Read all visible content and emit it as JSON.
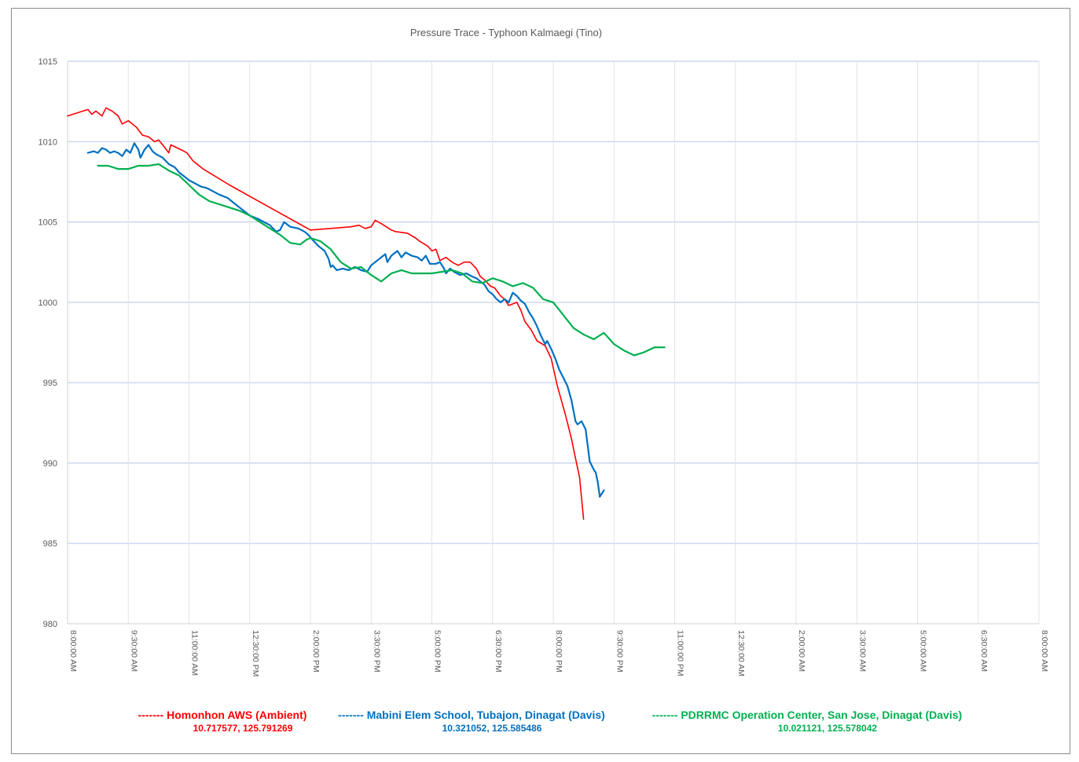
{
  "chart_data": {
    "type": "line",
    "title": "Pressure Trace - Typhoon Kalmaegi (Tino)",
    "xlabel": "",
    "ylabel": "",
    "ylim": [
      980,
      1015
    ],
    "y_ticks": [
      "1015",
      "1010",
      "1005",
      "1000",
      "995",
      "990",
      "985",
      "980"
    ],
    "x_range_hours": [
      8,
      32
    ],
    "x_ticks": [
      "8:00:00 AM",
      "9:30:00 AM",
      "11:00:00 AM",
      "12:30:00 PM",
      "2:00:00 PM",
      "3:30:00 PM",
      "5:00:00 PM",
      "6:30:00 PM",
      "8:00:00 PM",
      "9:30:00 PM",
      "11:00:00 PM",
      "12:30:00 AM",
      "2:00:00 AM",
      "3:30:00 AM",
      "5:00:00 AM",
      "6:30:00 AM",
      "8:00:00 AM"
    ],
    "grid": "horizontal and vertical",
    "legend_position": "bottom",
    "series": [
      {
        "name": "Homonhon AWS (Ambient)",
        "legend_prefix": "-------",
        "coords": "10.717577, 125.791269",
        "color": "#ff0000",
        "points": [
          [
            8.0,
            1011.6
          ],
          [
            8.5,
            1012.0
          ],
          [
            8.6,
            1011.7
          ],
          [
            8.7,
            1011.9
          ],
          [
            8.85,
            1011.6
          ],
          [
            8.95,
            1012.1
          ],
          [
            9.1,
            1011.9
          ],
          [
            9.25,
            1011.6
          ],
          [
            9.35,
            1011.1
          ],
          [
            9.5,
            1011.3
          ],
          [
            9.7,
            1010.9
          ],
          [
            9.85,
            1010.4
          ],
          [
            10.0,
            1010.3
          ],
          [
            10.15,
            1010.0
          ],
          [
            10.25,
            1010.1
          ],
          [
            10.35,
            1009.8
          ],
          [
            10.5,
            1009.3
          ],
          [
            10.55,
            1009.8
          ],
          [
            10.8,
            1009.5
          ],
          [
            10.95,
            1009.3
          ],
          [
            11.1,
            1008.8
          ],
          [
            11.35,
            1008.3
          ],
          [
            12.0,
            1007.3
          ],
          [
            13.0,
            1005.9
          ],
          [
            14.0,
            1004.5
          ],
          [
            14.5,
            1004.6
          ],
          [
            15.0,
            1004.7
          ],
          [
            15.2,
            1004.8
          ],
          [
            15.35,
            1004.6
          ],
          [
            15.5,
            1004.7
          ],
          [
            15.6,
            1005.1
          ],
          [
            15.75,
            1004.9
          ],
          [
            16.0,
            1004.5
          ],
          [
            16.1,
            1004.4
          ],
          [
            16.4,
            1004.3
          ],
          [
            16.6,
            1004.0
          ],
          [
            16.7,
            1003.8
          ],
          [
            16.9,
            1003.5
          ],
          [
            17.0,
            1003.2
          ],
          [
            17.1,
            1003.3
          ],
          [
            17.2,
            1002.6
          ],
          [
            17.35,
            1002.8
          ],
          [
            17.5,
            1002.5
          ],
          [
            17.65,
            1002.3
          ],
          [
            17.8,
            1002.5
          ],
          [
            17.95,
            1002.5
          ],
          [
            18.1,
            1002.1
          ],
          [
            18.2,
            1001.6
          ],
          [
            18.3,
            1001.4
          ],
          [
            18.45,
            1001.0
          ],
          [
            18.55,
            1000.9
          ],
          [
            18.7,
            1000.4
          ],
          [
            18.8,
            1000.2
          ],
          [
            18.9,
            999.8
          ],
          [
            19.0,
            999.9
          ],
          [
            19.1,
            1000.0
          ],
          [
            19.2,
            999.5
          ],
          [
            19.3,
            998.8
          ],
          [
            19.45,
            998.3
          ],
          [
            19.6,
            997.6
          ],
          [
            19.8,
            997.3
          ],
          [
            19.95,
            996.5
          ],
          [
            20.1,
            994.8
          ],
          [
            20.3,
            993.0
          ],
          [
            20.45,
            991.5
          ],
          [
            20.55,
            990.3
          ],
          [
            20.65,
            989.1
          ],
          [
            20.75,
            986.5
          ]
        ]
      },
      {
        "name": "Mabini Elem School, Tubajon, Dinagat (Davis)",
        "legend_prefix": "-------",
        "coords": "10.321052, 125.585486",
        "color": "#0070c0",
        "points": [
          [
            8.5,
            1009.3
          ],
          [
            8.65,
            1009.4
          ],
          [
            8.75,
            1009.3
          ],
          [
            8.85,
            1009.6
          ],
          [
            8.95,
            1009.5
          ],
          [
            9.05,
            1009.3
          ],
          [
            9.15,
            1009.4
          ],
          [
            9.25,
            1009.3
          ],
          [
            9.35,
            1009.1
          ],
          [
            9.45,
            1009.5
          ],
          [
            9.55,
            1009.3
          ],
          [
            9.65,
            1009.9
          ],
          [
            9.75,
            1009.5
          ],
          [
            9.8,
            1009.0
          ],
          [
            9.9,
            1009.5
          ],
          [
            10.0,
            1009.8
          ],
          [
            10.1,
            1009.4
          ],
          [
            10.2,
            1009.2
          ],
          [
            10.35,
            1009.0
          ],
          [
            10.5,
            1008.6
          ],
          [
            10.65,
            1008.4
          ],
          [
            10.75,
            1008.1
          ],
          [
            10.9,
            1007.8
          ],
          [
            11.0,
            1007.6
          ],
          [
            11.15,
            1007.4
          ],
          [
            11.3,
            1007.2
          ],
          [
            11.45,
            1007.1
          ],
          [
            11.6,
            1006.9
          ],
          [
            11.75,
            1006.7
          ],
          [
            11.95,
            1006.5
          ],
          [
            12.1,
            1006.2
          ],
          [
            12.3,
            1005.8
          ],
          [
            12.5,
            1005.4
          ],
          [
            12.7,
            1005.2
          ],
          [
            12.85,
            1005.0
          ],
          [
            13.0,
            1004.8
          ],
          [
            13.15,
            1004.4
          ],
          [
            13.25,
            1004.5
          ],
          [
            13.35,
            1005.0
          ],
          [
            13.5,
            1004.7
          ],
          [
            13.7,
            1004.6
          ],
          [
            13.85,
            1004.4
          ],
          [
            13.95,
            1004.2
          ],
          [
            14.05,
            1003.9
          ],
          [
            14.2,
            1003.5
          ],
          [
            14.35,
            1003.2
          ],
          [
            14.45,
            1002.7
          ],
          [
            14.5,
            1002.2
          ],
          [
            14.55,
            1002.3
          ],
          [
            14.65,
            1002.0
          ],
          [
            14.8,
            1002.1
          ],
          [
            14.95,
            1002.0
          ],
          [
            15.1,
            1002.2
          ],
          [
            15.25,
            1002.0
          ],
          [
            15.4,
            1001.9
          ],
          [
            15.5,
            1002.3
          ],
          [
            15.6,
            1002.5
          ],
          [
            15.75,
            1002.8
          ],
          [
            15.85,
            1003.0
          ],
          [
            15.9,
            1002.5
          ],
          [
            16.0,
            1002.9
          ],
          [
            16.15,
            1003.2
          ],
          [
            16.25,
            1002.8
          ],
          [
            16.35,
            1003.1
          ],
          [
            16.5,
            1002.9
          ],
          [
            16.65,
            1002.8
          ],
          [
            16.75,
            1002.6
          ],
          [
            16.85,
            1002.9
          ],
          [
            16.95,
            1002.4
          ],
          [
            17.1,
            1002.4
          ],
          [
            17.2,
            1002.5
          ],
          [
            17.3,
            1002.1
          ],
          [
            17.35,
            1001.8
          ],
          [
            17.45,
            1002.1
          ],
          [
            17.55,
            1001.9
          ],
          [
            17.7,
            1001.7
          ],
          [
            17.85,
            1001.8
          ],
          [
            18.0,
            1001.6
          ],
          [
            18.1,
            1001.5
          ],
          [
            18.2,
            1001.3
          ],
          [
            18.3,
            1001.1
          ],
          [
            18.4,
            1000.7
          ],
          [
            18.5,
            1000.5
          ],
          [
            18.6,
            1000.2
          ],
          [
            18.7,
            1000.0
          ],
          [
            18.8,
            1000.2
          ],
          [
            18.9,
            1000.0
          ],
          [
            19.0,
            1000.6
          ],
          [
            19.1,
            1000.4
          ],
          [
            19.2,
            1000.1
          ],
          [
            19.3,
            999.9
          ],
          [
            19.4,
            999.4
          ],
          [
            19.5,
            999.0
          ],
          [
            19.6,
            998.5
          ],
          [
            19.7,
            997.9
          ],
          [
            19.8,
            997.4
          ],
          [
            19.85,
            997.6
          ],
          [
            19.95,
            997.1
          ],
          [
            20.05,
            996.5
          ],
          [
            20.15,
            995.8
          ],
          [
            20.25,
            995.3
          ],
          [
            20.35,
            994.8
          ],
          [
            20.45,
            993.9
          ],
          [
            20.55,
            992.6
          ],
          [
            20.6,
            992.4
          ],
          [
            20.7,
            992.6
          ],
          [
            20.8,
            992.1
          ],
          [
            20.9,
            990.1
          ],
          [
            21.0,
            989.6
          ],
          [
            21.05,
            989.4
          ],
          [
            21.1,
            988.8
          ],
          [
            21.15,
            987.9
          ],
          [
            21.25,
            988.3
          ]
        ]
      },
      {
        "name": "PDRRMC Operation Center, San Jose, Dinagat (Davis)",
        "legend_prefix": "-------",
        "coords": "10.021121, 125.578042",
        "color": "#00b050",
        "points": [
          [
            8.75,
            1008.5
          ],
          [
            9.0,
            1008.5
          ],
          [
            9.25,
            1008.3
          ],
          [
            9.5,
            1008.3
          ],
          [
            9.75,
            1008.5
          ],
          [
            10.0,
            1008.5
          ],
          [
            10.25,
            1008.6
          ],
          [
            10.5,
            1008.2
          ],
          [
            10.75,
            1007.9
          ],
          [
            11.0,
            1007.3
          ],
          [
            11.25,
            1006.7
          ],
          [
            11.5,
            1006.3
          ],
          [
            11.75,
            1006.1
          ],
          [
            12.0,
            1005.9
          ],
          [
            12.25,
            1005.7
          ],
          [
            12.5,
            1005.4
          ],
          [
            12.75,
            1005.0
          ],
          [
            13.0,
            1004.6
          ],
          [
            13.25,
            1004.2
          ],
          [
            13.5,
            1003.7
          ],
          [
            13.75,
            1003.6
          ],
          [
            13.9,
            1003.9
          ],
          [
            14.0,
            1004.0
          ],
          [
            14.25,
            1003.8
          ],
          [
            14.5,
            1003.3
          ],
          [
            14.75,
            1002.5
          ],
          [
            15.0,
            1002.1
          ],
          [
            15.25,
            1002.2
          ],
          [
            15.5,
            1001.7
          ],
          [
            15.75,
            1001.3
          ],
          [
            16.0,
            1001.8
          ],
          [
            16.25,
            1002.0
          ],
          [
            16.5,
            1001.8
          ],
          [
            16.75,
            1001.8
          ],
          [
            17.0,
            1001.8
          ],
          [
            17.25,
            1001.9
          ],
          [
            17.5,
            1002.0
          ],
          [
            17.75,
            1001.8
          ],
          [
            18.0,
            1001.3
          ],
          [
            18.25,
            1001.2
          ],
          [
            18.5,
            1001.5
          ],
          [
            18.75,
            1001.3
          ],
          [
            19.0,
            1001.0
          ],
          [
            19.25,
            1001.2
          ],
          [
            19.5,
            1000.9
          ],
          [
            19.75,
            1000.2
          ],
          [
            20.0,
            1000.0
          ],
          [
            20.25,
            999.2
          ],
          [
            20.5,
            998.4
          ],
          [
            20.75,
            998.0
          ],
          [
            21.0,
            997.7
          ],
          [
            21.25,
            998.1
          ],
          [
            21.5,
            997.4
          ],
          [
            21.75,
            997.0
          ],
          [
            22.0,
            996.7
          ],
          [
            22.25,
            996.9
          ],
          [
            22.5,
            997.2
          ],
          [
            22.75,
            997.2
          ]
        ]
      }
    ]
  }
}
